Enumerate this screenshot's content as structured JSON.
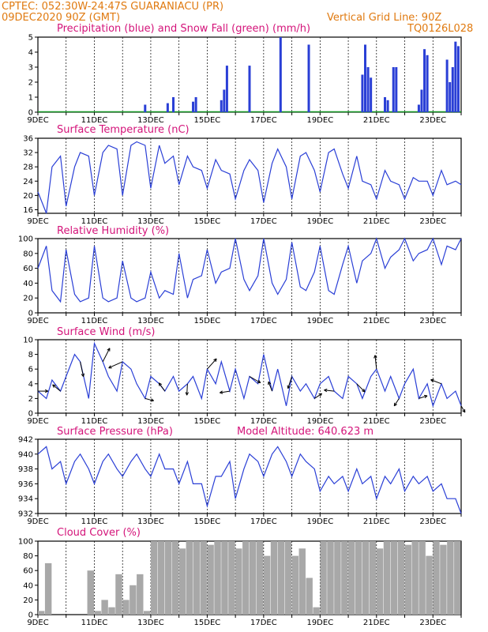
{
  "header": {
    "line1": "CPTEC:   052:30W-24:47S   GUARANIACU (PR)",
    "line2_left": "09DEC2020 90Z (GMT)",
    "line2_right": "Vertical Grid Line: 90Z",
    "line3_right": "TQ0126L028"
  },
  "x_axis": {
    "start_day": 9,
    "end_day": 24,
    "labels": [
      "9DEC",
      "11DEC",
      "13DEC",
      "15DEC",
      "17DEC",
      "19DEC",
      "21DEC",
      "23DEC"
    ]
  },
  "panels": {
    "precip": {
      "title": "Precipitation (blue) and Snow Fall (green) (mm/h)",
      "yticks": [
        "0",
        "1",
        "2",
        "3",
        "4",
        "5"
      ]
    },
    "temp": {
      "title": "Surface Temperature (nC)",
      "yticks": [
        "16",
        "20",
        "24",
        "28",
        "32",
        "36"
      ]
    },
    "rh": {
      "title": "Relative Humidity (%)",
      "yticks": [
        "0",
        "20",
        "40",
        "60",
        "80",
        "100"
      ]
    },
    "wind": {
      "title": "Surface Wind (m/s)",
      "yticks": [
        "0",
        "2",
        "4",
        "6",
        "8",
        "10"
      ]
    },
    "pressure": {
      "title": "Surface Pressure (hPa)",
      "altitude": "Model Altitude: 640.623 m",
      "yticks": [
        "932",
        "934",
        "936",
        "938",
        "940",
        "942"
      ]
    },
    "cloud": {
      "title": "Cloud Cover (%)",
      "yticks": [
        "0",
        "20",
        "40",
        "60",
        "80",
        "100"
      ]
    }
  },
  "chart_data": [
    {
      "type": "bar",
      "title": "Precipitation (blue) and Snow Fall (green) (mm/h)",
      "ylim": [
        0,
        5
      ],
      "x_unit": "day of December 2020",
      "x": [
        12.8,
        13.6,
        13.8,
        14.5,
        14.6,
        15.5,
        15.6,
        15.7,
        16.5,
        17.6,
        18.6,
        20.5,
        20.6,
        20.7,
        20.8,
        21.3,
        21.4,
        21.6,
        21.7,
        22.5,
        22.6,
        22.7,
        22.8,
        23.5,
        23.6,
        23.7,
        23.8,
        23.9
      ],
      "series": [
        {
          "name": "Precipitation",
          "values": [
            0.5,
            0.6,
            1.0,
            0.7,
            1.0,
            0.8,
            1.5,
            3.1,
            3.1,
            5.0,
            4.5,
            2.5,
            4.5,
            3.0,
            2.3,
            1.0,
            0.8,
            3.0,
            3.0,
            0.5,
            1.5,
            4.2,
            3.8,
            3.5,
            2.0,
            3.0,
            4.7,
            4.4
          ]
        }
      ]
    },
    {
      "type": "line",
      "title": "Surface Temperature (nC)",
      "ylim": [
        15,
        36
      ],
      "x": [
        9.0,
        9.3,
        9.5,
        9.8,
        10.0,
        10.3,
        10.5,
        10.8,
        11.0,
        11.3,
        11.5,
        11.8,
        12.0,
        12.3,
        12.5,
        12.8,
        13.0,
        13.3,
        13.5,
        13.8,
        14.0,
        14.3,
        14.5,
        14.8,
        15.0,
        15.3,
        15.5,
        15.8,
        16.0,
        16.3,
        16.5,
        16.8,
        17.0,
        17.3,
        17.5,
        17.8,
        18.0,
        18.3,
        18.5,
        18.8,
        19.0,
        19.3,
        19.5,
        19.8,
        20.0,
        20.3,
        20.5,
        20.8,
        21.0,
        21.3,
        21.5,
        21.8,
        22.0,
        22.3,
        22.5,
        22.8,
        23.0,
        23.3,
        23.5,
        23.8,
        24.0
      ],
      "series": [
        {
          "name": "Surface Temperature",
          "values": [
            21,
            15,
            28,
            31,
            17,
            28,
            32,
            31,
            20,
            32,
            34,
            33,
            20,
            34,
            35,
            34,
            22,
            34,
            29,
            31,
            23,
            31,
            28,
            27,
            22,
            30,
            27,
            26,
            19,
            27,
            30,
            27,
            18,
            29,
            33,
            28,
            19,
            31,
            32,
            27,
            21,
            32,
            33,
            26,
            22,
            31,
            24,
            23,
            19,
            27,
            24,
            23,
            19,
            25,
            24,
            24,
            20,
            27,
            23,
            24,
            23
          ]
        }
      ]
    },
    {
      "type": "line",
      "title": "Relative Humidity (%)",
      "ylim": [
        0,
        100
      ],
      "x": [
        9.0,
        9.3,
        9.5,
        9.8,
        10.0,
        10.3,
        10.5,
        10.8,
        11.0,
        11.3,
        11.5,
        11.8,
        12.0,
        12.3,
        12.5,
        12.8,
        13.0,
        13.3,
        13.5,
        13.8,
        14.0,
        14.3,
        14.5,
        14.8,
        15.0,
        15.3,
        15.5,
        15.8,
        16.0,
        16.3,
        16.5,
        16.8,
        17.0,
        17.3,
        17.5,
        17.8,
        18.0,
        18.3,
        18.5,
        18.8,
        19.0,
        19.3,
        19.5,
        19.8,
        20.0,
        20.3,
        20.5,
        20.8,
        21.0,
        21.3,
        21.5,
        21.8,
        22.0,
        22.3,
        22.5,
        22.8,
        23.0,
        23.3,
        23.5,
        23.8,
        24.0
      ],
      "series": [
        {
          "name": "Relative Humidity",
          "values": [
            60,
            90,
            30,
            15,
            85,
            25,
            15,
            20,
            90,
            20,
            15,
            20,
            70,
            20,
            15,
            20,
            55,
            20,
            30,
            25,
            80,
            20,
            45,
            50,
            85,
            40,
            55,
            60,
            100,
            45,
            30,
            50,
            100,
            40,
            25,
            45,
            95,
            35,
            30,
            55,
            90,
            30,
            25,
            65,
            90,
            40,
            70,
            80,
            100,
            60,
            75,
            85,
            100,
            70,
            80,
            85,
            100,
            65,
            90,
            85,
            100
          ]
        }
      ]
    },
    {
      "type": "line",
      "title": "Surface Wind (m/s)",
      "ylim": [
        0,
        10
      ],
      "x": [
        9.0,
        9.3,
        9.5,
        9.8,
        10.0,
        10.3,
        10.5,
        10.8,
        11.0,
        11.3,
        11.5,
        11.8,
        12.0,
        12.3,
        12.5,
        12.8,
        13.0,
        13.3,
        13.5,
        13.8,
        14.0,
        14.3,
        14.5,
        14.8,
        15.0,
        15.3,
        15.5,
        15.8,
        16.0,
        16.3,
        16.5,
        16.8,
        17.0,
        17.3,
        17.5,
        17.8,
        18.0,
        18.3,
        18.5,
        18.8,
        19.0,
        19.3,
        19.5,
        19.8,
        20.0,
        20.3,
        20.5,
        20.8,
        21.0,
        21.3,
        21.5,
        21.8,
        22.0,
        22.3,
        22.5,
        22.8,
        23.0,
        23.3,
        23.5,
        23.8,
        24.0
      ],
      "series": [
        {
          "name": "Wind Speed",
          "values": [
            3,
            2,
            4.5,
            3,
            5,
            8,
            7,
            2,
            9.5,
            7,
            5,
            3,
            7,
            6,
            4,
            2,
            5,
            4,
            3,
            5,
            3,
            4,
            5,
            2,
            6,
            4,
            7,
            3,
            6,
            2,
            5,
            4,
            8,
            3,
            6,
            1,
            5,
            3,
            4,
            2,
            4,
            5,
            3,
            2,
            5,
            4,
            2,
            5,
            6,
            3,
            5,
            2,
            4,
            6,
            2,
            4,
            1,
            4,
            2,
            3,
            1
          ]
        }
      ]
    },
    {
      "type": "line",
      "title": "Surface Pressure (hPa)",
      "ylim": [
        932,
        942
      ],
      "x": [
        9.0,
        9.3,
        9.5,
        9.8,
        10.0,
        10.3,
        10.5,
        10.8,
        11.0,
        11.3,
        11.5,
        11.8,
        12.0,
        12.3,
        12.5,
        12.8,
        13.0,
        13.3,
        13.5,
        13.8,
        14.0,
        14.3,
        14.5,
        14.8,
        15.0,
        15.3,
        15.5,
        15.8,
        16.0,
        16.3,
        16.5,
        16.8,
        17.0,
        17.3,
        17.5,
        17.8,
        18.0,
        18.3,
        18.5,
        18.8,
        19.0,
        19.3,
        19.5,
        19.8,
        20.0,
        20.3,
        20.5,
        20.8,
        21.0,
        21.3,
        21.5,
        21.8,
        22.0,
        22.3,
        22.5,
        22.8,
        23.0,
        23.3,
        23.5,
        23.8,
        24.0
      ],
      "series": [
        {
          "name": "Surface Pressure",
          "values": [
            940,
            941,
            938,
            939,
            936,
            939,
            940,
            938,
            936,
            939,
            940,
            938,
            937,
            939,
            940,
            938,
            937,
            940,
            938,
            938,
            936,
            939,
            936,
            936,
            933,
            937,
            937,
            939,
            934,
            938,
            940,
            939,
            937,
            940,
            941,
            939,
            937,
            940,
            939,
            938,
            935,
            937,
            936,
            937,
            935,
            938,
            936,
            937,
            934,
            937,
            936,
            938,
            935,
            937,
            936,
            937,
            935,
            936,
            934,
            934,
            932
          ]
        }
      ]
    },
    {
      "type": "bar",
      "title": "Cloud Cover (%)",
      "ylim": [
        0,
        100
      ],
      "x": [
        9.0,
        9.25,
        9.5,
        9.75,
        10.0,
        10.25,
        10.5,
        10.75,
        11.0,
        11.25,
        11.5,
        11.75,
        12.0,
        12.25,
        12.5,
        12.75,
        13.0,
        13.25,
        13.5,
        13.75,
        14.0,
        14.25,
        14.5,
        14.75,
        15.0,
        15.25,
        15.5,
        15.75,
        16.0,
        16.25,
        16.5,
        16.75,
        17.0,
        17.25,
        17.5,
        17.75,
        18.0,
        18.25,
        18.5,
        18.75,
        19.0,
        19.25,
        19.5,
        19.75,
        20.0,
        20.25,
        20.5,
        20.75,
        21.0,
        21.25,
        21.5,
        21.75,
        22.0,
        22.25,
        22.5,
        22.75,
        23.0,
        23.25,
        23.5,
        23.75
      ],
      "series": [
        {
          "name": "Cloud Cover",
          "values": [
            5,
            70,
            0,
            0,
            0,
            0,
            0,
            60,
            5,
            20,
            10,
            55,
            20,
            40,
            55,
            5,
            100,
            100,
            100,
            100,
            90,
            100,
            100,
            100,
            95,
            100,
            100,
            100,
            90,
            100,
            100,
            100,
            80,
            100,
            100,
            100,
            80,
            90,
            50,
            10,
            100,
            100,
            100,
            100,
            100,
            100,
            100,
            100,
            90,
            100,
            100,
            100,
            95,
            100,
            100,
            80,
            100,
            95,
            100,
            100
          ]
        }
      ]
    }
  ]
}
